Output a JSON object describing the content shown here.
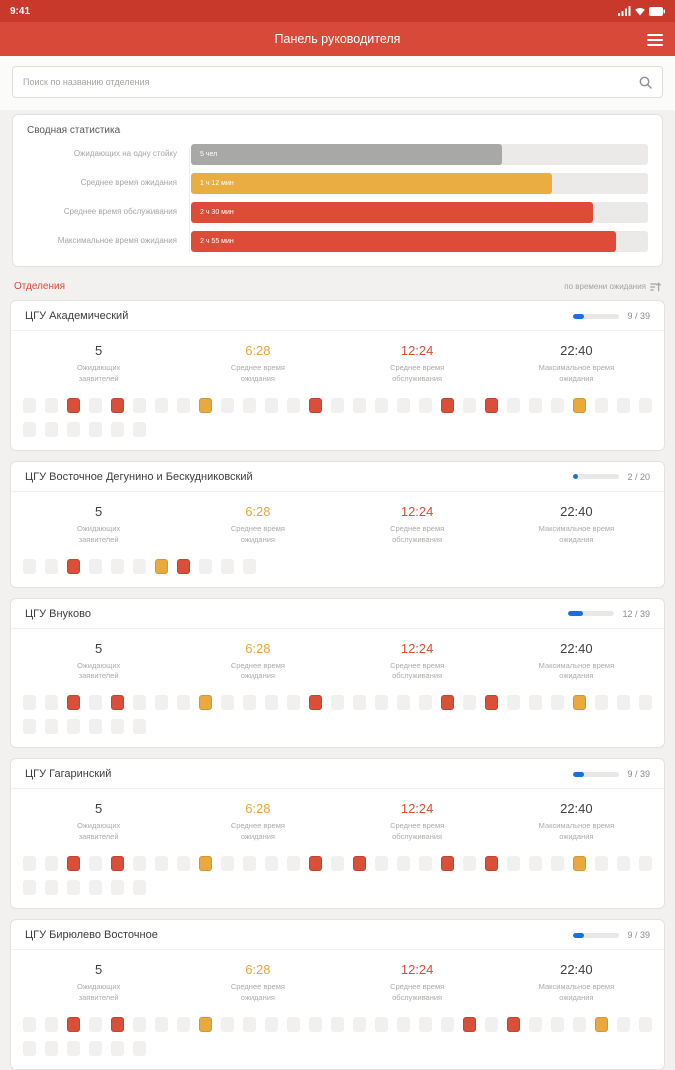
{
  "status_bar": {
    "time": "9:41"
  },
  "app_bar": {
    "title": "Панель руководителя"
  },
  "search": {
    "placeholder": "Поиск по названию отделения"
  },
  "summary": {
    "title": "Сводная статистика",
    "rows": [
      {
        "label": "Ожидающих на одну стойку",
        "value": "5 чел",
        "color": "#a8a8a6",
        "pct": 68
      },
      {
        "label": "Среднее время ожидания",
        "value": "1 ч 12 мин",
        "color": "#e9ad41",
        "pct": 79
      },
      {
        "label": "Среднее время обслуживания",
        "value": "2 ч 30 мин",
        "color": "#de4b36",
        "pct": 88
      },
      {
        "label": "Максимальное время ожидания",
        "value": "2 ч 55 мин",
        "color": "#de4b36",
        "pct": 93
      }
    ]
  },
  "departments_section": {
    "title": "Отделения",
    "sort_label": "по времени ожидания"
  },
  "stat_labels": [
    "Ожидающих заявителей",
    "Среднее время ожидания",
    "Среднее время обслуживания",
    "Максимальное время ожидания"
  ],
  "stat_value_colors": [
    "#3f3f41",
    "#e9a43c",
    "#de4b36",
    "#3f3f41"
  ],
  "departments": [
    {
      "name": "ЦГУ Академический",
      "count": "9 / 39",
      "progress_pct": 23,
      "stats": [
        "5",
        "6:28",
        "12:24",
        "22:40"
      ],
      "rows": [
        "ggrgrgggyggggrgggggrgrgggyggg",
        "gggggg"
      ]
    },
    {
      "name": "ЦГУ Восточное Дегунино и Бескудниковский",
      "count": "2 / 20",
      "progress_pct": 10,
      "stats": [
        "5",
        "6:28",
        "12:24",
        "22:40"
      ],
      "rows": [
        "ggrgggyrggg"
      ]
    },
    {
      "name": "ЦГУ Внуково",
      "count": "12 / 39",
      "progress_pct": 31,
      "stats": [
        "5",
        "6:28",
        "12:24",
        "22:40"
      ],
      "rows": [
        "ggrgrgggyggggrgggggrgrgggyggg",
        "gggggg"
      ]
    },
    {
      "name": "ЦГУ Гагаринский",
      "count": "9 / 39",
      "progress_pct": 23,
      "stats": [
        "5",
        "6:28",
        "12:24",
        "22:40"
      ],
      "rows": [
        "ggrgrgggyggggrgrgggrgrgggyggg",
        "gggggg"
      ]
    },
    {
      "name": "ЦГУ Бирюлево Восточное",
      "count": "9 / 39",
      "progress_pct": 23,
      "stats": [
        "5",
        "6:28",
        "12:24",
        "22:40"
      ],
      "rows": [
        "ggrgrgggygggggggggggrgrgggygg",
        "gggggg"
      ]
    }
  ],
  "colors": {
    "header_red": "#d8493a",
    "statusbar_red": "#c8392b",
    "accent_red": "#de4b36",
    "accent_yellow": "#e9a93e",
    "progress_blue": "#1b6fd6"
  }
}
